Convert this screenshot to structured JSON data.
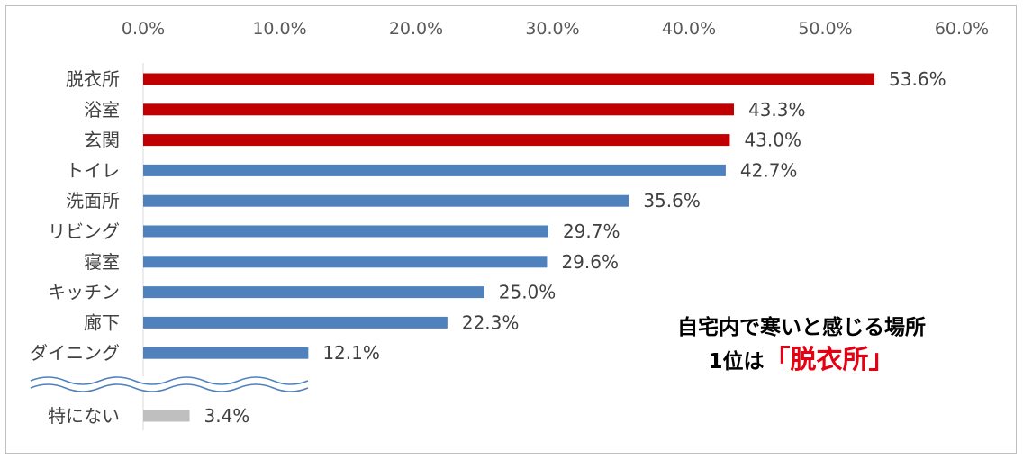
{
  "chart_data": {
    "type": "bar",
    "orientation": "horizontal",
    "xlim": [
      0,
      60
    ],
    "x_ticks": [
      "0.0%",
      "10.0%",
      "20.0%",
      "30.0%",
      "40.0%",
      "50.0%",
      "60.0%"
    ],
    "categories": [
      "脱衣所",
      "浴室",
      "玄関",
      "トイレ",
      "洗面所",
      "リビング",
      "寝室",
      "キッチン",
      "廊下",
      "ダイニング"
    ],
    "values": [
      53.6,
      43.3,
      43.0,
      42.7,
      35.6,
      29.7,
      29.6,
      25.0,
      22.3,
      12.1
    ],
    "value_labels": [
      "53.6%",
      "43.3%",
      "43.0%",
      "42.7%",
      "35.6%",
      "29.7%",
      "29.6%",
      "25.0%",
      "22.3%",
      "12.1%"
    ],
    "highlighted_count": 3,
    "extra_category": {
      "label": "特にない",
      "value": 3.4,
      "value_label": "3.4%"
    },
    "colors": {
      "highlight": "#c00000",
      "normal": "#4f81bd",
      "extra": "#bfbfbf"
    },
    "grid": false,
    "legend": "none"
  },
  "callout": {
    "line1": "自宅内で寒いと感じる場所",
    "line2_prefix": "1位は",
    "line2_highlight": "「脱衣所」"
  }
}
